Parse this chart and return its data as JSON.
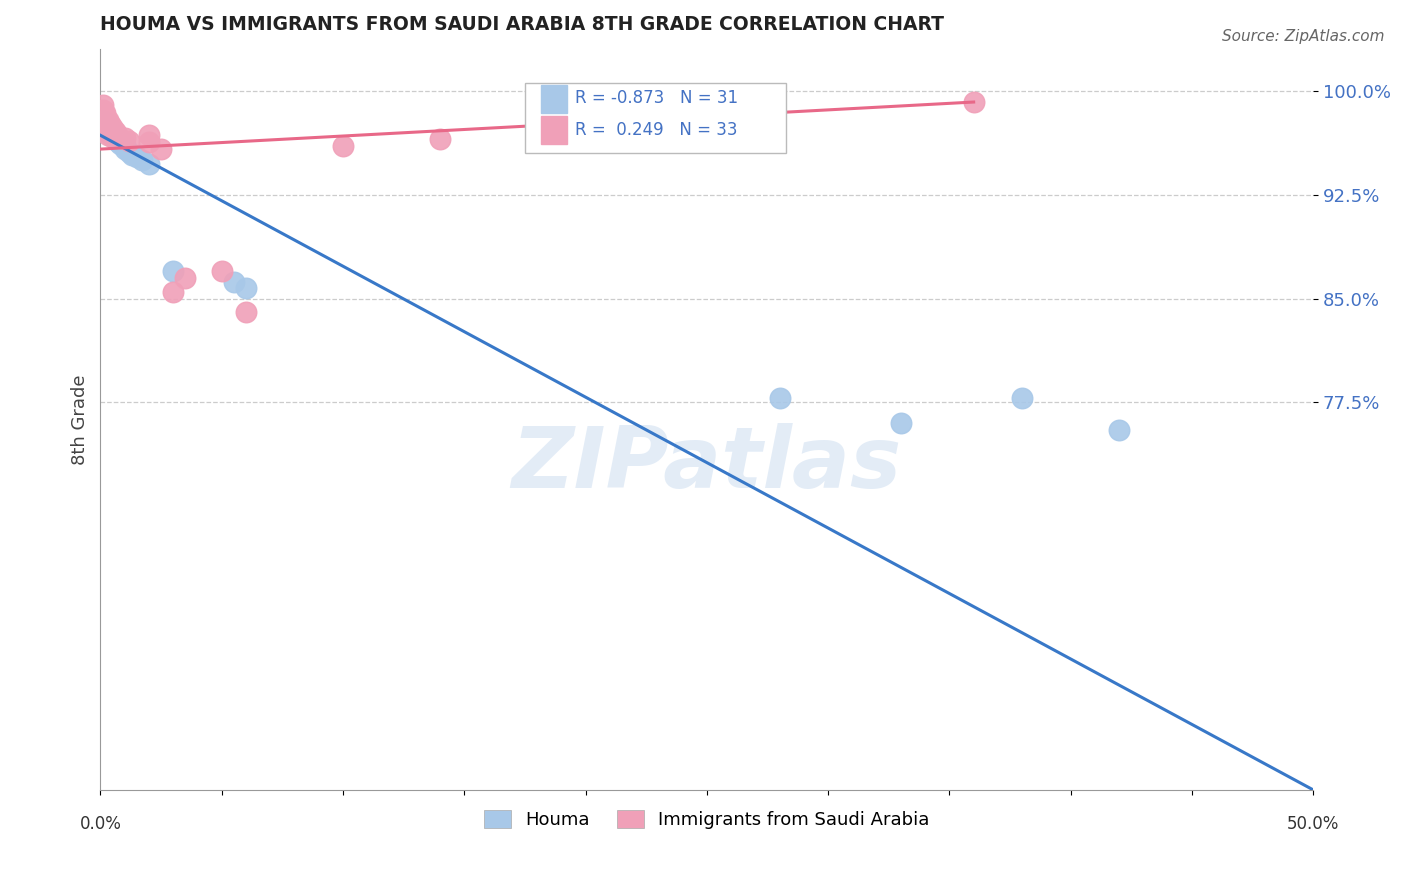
{
  "title": "HOUMA VS IMMIGRANTS FROM SAUDI ARABIA 8TH GRADE CORRELATION CHART",
  "source": "Source: ZipAtlas.com",
  "ylabel": "8th Grade",
  "ytick_labels": [
    "100.0%",
    "92.5%",
    "85.0%",
    "77.5%"
  ],
  "ytick_values": [
    1.0,
    0.925,
    0.85,
    0.775
  ],
  "grid_lines": [
    1.0,
    0.925,
    0.85,
    0.775
  ],
  "xlim": [
    0.0,
    0.5
  ],
  "ylim": [
    0.495,
    1.03
  ],
  "r_houma": -0.873,
  "n_houma": 31,
  "r_saudi": 0.249,
  "n_saudi": 33,
  "houma_color": "#a8c8e8",
  "saudi_color": "#f0a0b8",
  "houma_line_color": "#3878c8",
  "saudi_line_color": "#e86888",
  "legend_label_houma": "Houma",
  "legend_label_saudi": "Immigrants from Saudi Arabia",
  "watermark": "ZIPatlas",
  "houma_line": [
    0.0,
    0.968,
    0.5,
    0.495
  ],
  "saudi_line": [
    0.0,
    0.958,
    0.36,
    0.992
  ],
  "houma_points": [
    [
      0.001,
      0.978
    ],
    [
      0.001,
      0.975
    ],
    [
      0.002,
      0.974
    ],
    [
      0.002,
      0.971
    ],
    [
      0.003,
      0.976
    ],
    [
      0.003,
      0.972
    ],
    [
      0.004,
      0.973
    ],
    [
      0.004,
      0.97
    ],
    [
      0.005,
      0.971
    ],
    [
      0.005,
      0.968
    ],
    [
      0.006,
      0.969
    ],
    [
      0.006,
      0.966
    ],
    [
      0.007,
      0.967
    ],
    [
      0.007,
      0.964
    ],
    [
      0.008,
      0.965
    ],
    [
      0.008,
      0.962
    ],
    [
      0.009,
      0.963
    ],
    [
      0.01,
      0.961
    ],
    [
      0.01,
      0.958
    ],
    [
      0.012,
      0.956
    ],
    [
      0.013,
      0.954
    ],
    [
      0.015,
      0.952
    ],
    [
      0.017,
      0.95
    ],
    [
      0.02,
      0.947
    ],
    [
      0.03,
      0.87
    ],
    [
      0.055,
      0.862
    ],
    [
      0.06,
      0.858
    ],
    [
      0.28,
      0.778
    ],
    [
      0.33,
      0.76
    ],
    [
      0.38,
      0.778
    ],
    [
      0.42,
      0.755
    ]
  ],
  "saudi_points": [
    [
      0.001,
      0.99
    ],
    [
      0.001,
      0.986
    ],
    [
      0.001,
      0.982
    ],
    [
      0.001,
      0.978
    ],
    [
      0.002,
      0.984
    ],
    [
      0.002,
      0.98
    ],
    [
      0.002,
      0.976
    ],
    [
      0.002,
      0.972
    ],
    [
      0.003,
      0.979
    ],
    [
      0.003,
      0.975
    ],
    [
      0.003,
      0.971
    ],
    [
      0.003,
      0.968
    ],
    [
      0.004,
      0.976
    ],
    [
      0.004,
      0.972
    ],
    [
      0.004,
      0.969
    ],
    [
      0.005,
      0.974
    ],
    [
      0.005,
      0.97
    ],
    [
      0.005,
      0.967
    ],
    [
      0.006,
      0.971
    ],
    [
      0.007,
      0.969
    ],
    [
      0.01,
      0.966
    ],
    [
      0.012,
      0.964
    ],
    [
      0.02,
      0.968
    ],
    [
      0.03,
      0.855
    ],
    [
      0.035,
      0.865
    ],
    [
      0.05,
      0.87
    ],
    [
      0.06,
      0.84
    ],
    [
      0.02,
      0.963
    ],
    [
      0.1,
      0.96
    ],
    [
      0.14,
      0.965
    ],
    [
      0.22,
      0.97
    ],
    [
      0.36,
      0.992
    ],
    [
      0.025,
      0.958
    ]
  ]
}
